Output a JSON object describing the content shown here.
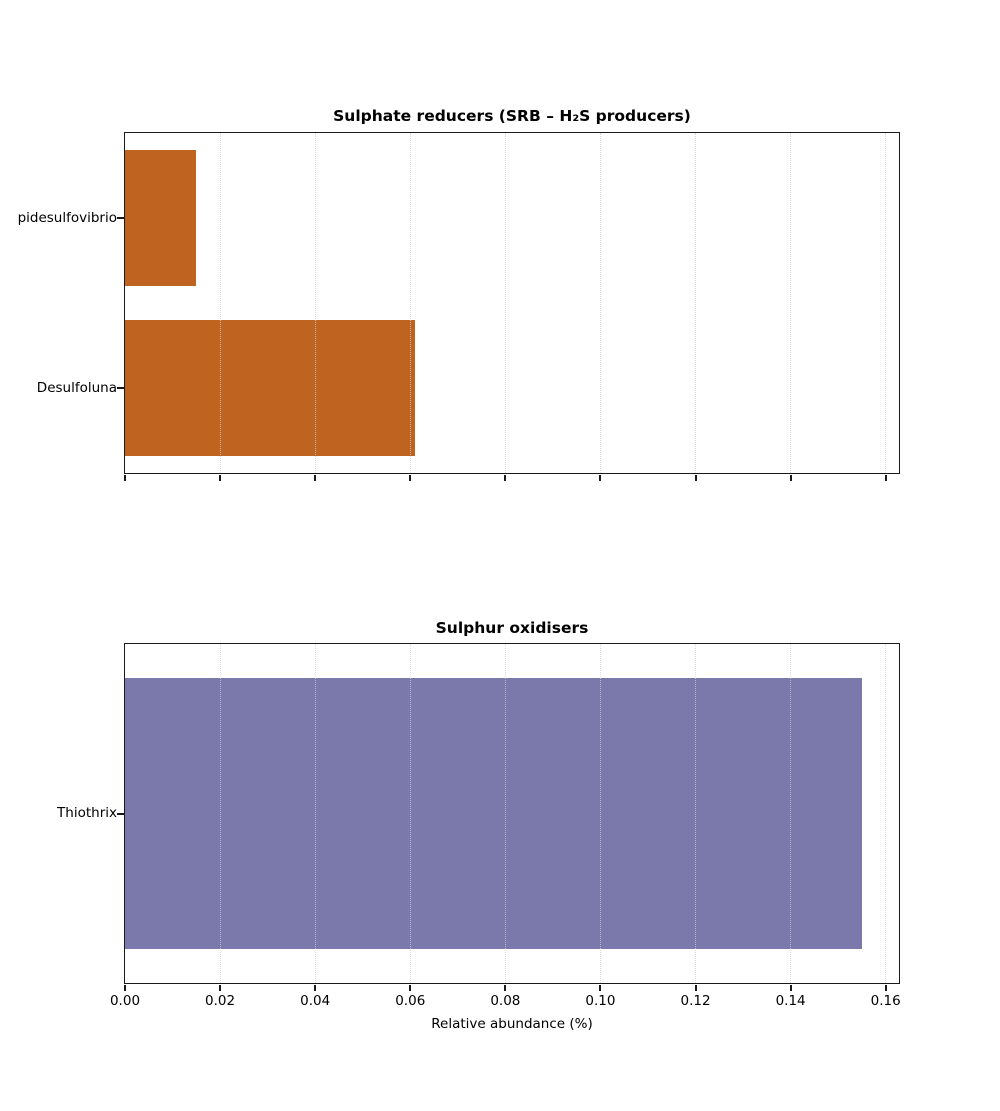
{
  "figure": {
    "background": "#ffffff",
    "grid": "vertical-dotted",
    "gridline_color": "#d0d0d0"
  },
  "chart_data": [
    {
      "type": "bar",
      "orientation": "horizontal",
      "title": "Sulphate reducers (SRB – H₂S producers)",
      "categories": [
        "pidesulfovibrio",
        "Desulfoluna"
      ],
      "values": [
        0.015,
        0.061
      ],
      "bar_color": "#bf6420",
      "xlim": [
        0,
        0.1628
      ],
      "xticks": [
        "0.00",
        "0.02",
        "0.04",
        "0.06",
        "0.08",
        "0.10",
        "0.12",
        "0.14",
        "0.16"
      ],
      "show_xtick_labels": false,
      "xlabel": "",
      "legend": "none",
      "grid": true
    },
    {
      "type": "bar",
      "orientation": "horizontal",
      "title": "Sulphur oxidisers",
      "categories": [
        "Thiothrix"
      ],
      "values": [
        0.155
      ],
      "bar_color": "#7b78ac",
      "xlim": [
        0,
        0.1628
      ],
      "xticks": [
        "0.00",
        "0.02",
        "0.04",
        "0.06",
        "0.08",
        "0.10",
        "0.12",
        "0.14",
        "0.16"
      ],
      "show_xtick_labels": true,
      "xlabel": "Relative abundance (%)",
      "legend": "none",
      "grid": true
    }
  ]
}
